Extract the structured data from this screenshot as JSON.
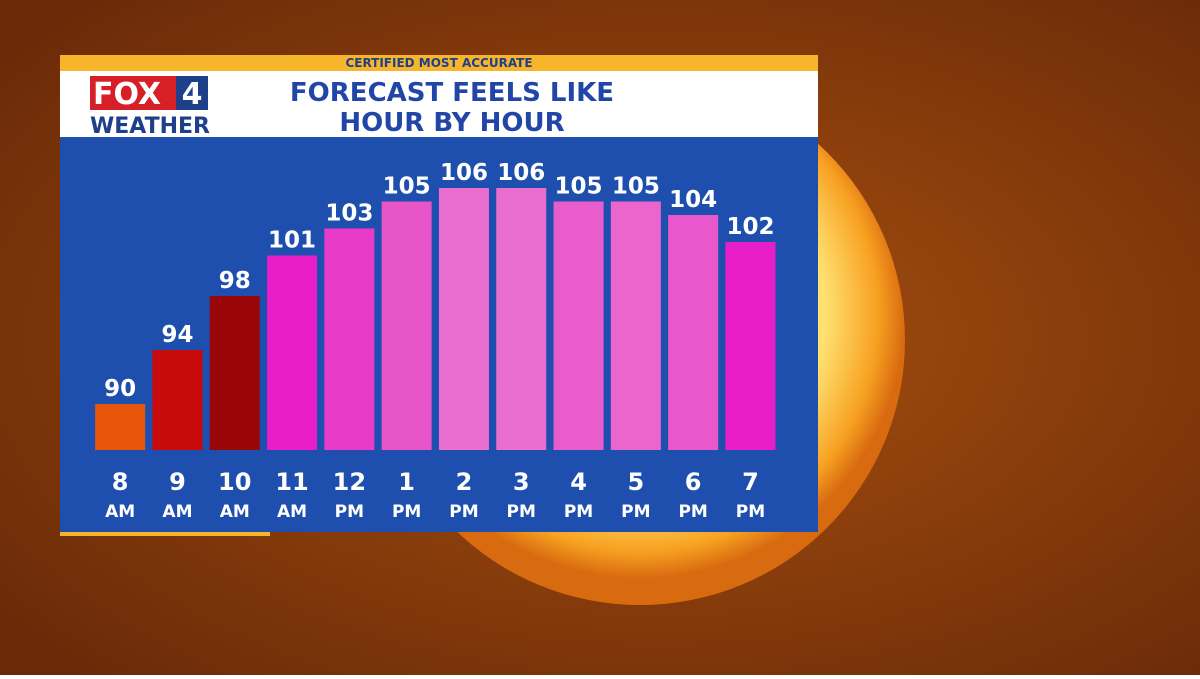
{
  "branding": {
    "banner": "CERTIFIED MOST ACCURATE",
    "logo_top": "FOX",
    "logo_number": "4",
    "logo_bottom": "WEATHER"
  },
  "chart_data": {
    "type": "bar",
    "title_lines": [
      "FORECAST FEELS LIKE",
      "HOUR BY HOUR"
    ],
    "categories": [
      "8",
      "9",
      "10",
      "11",
      "12",
      "1",
      "2",
      "3",
      "4",
      "5",
      "6",
      "7"
    ],
    "periods": [
      "AM",
      "AM",
      "AM",
      "AM",
      "PM",
      "PM",
      "PM",
      "PM",
      "PM",
      "PM",
      "PM",
      "PM"
    ],
    "values": [
      90,
      94,
      98,
      101,
      103,
      105,
      106,
      106,
      105,
      105,
      104,
      102
    ],
    "colors": [
      "#e8560c",
      "#c80a0a",
      "#9a0508",
      "#e81ec8",
      "#e83cc8",
      "#e855c9",
      "#ea6ed0",
      "#ea6ed0",
      "#e85ccc",
      "#ea66ce",
      "#e858cc",
      "#e81ec8"
    ],
    "ylim": [
      86.6,
      106
    ]
  }
}
